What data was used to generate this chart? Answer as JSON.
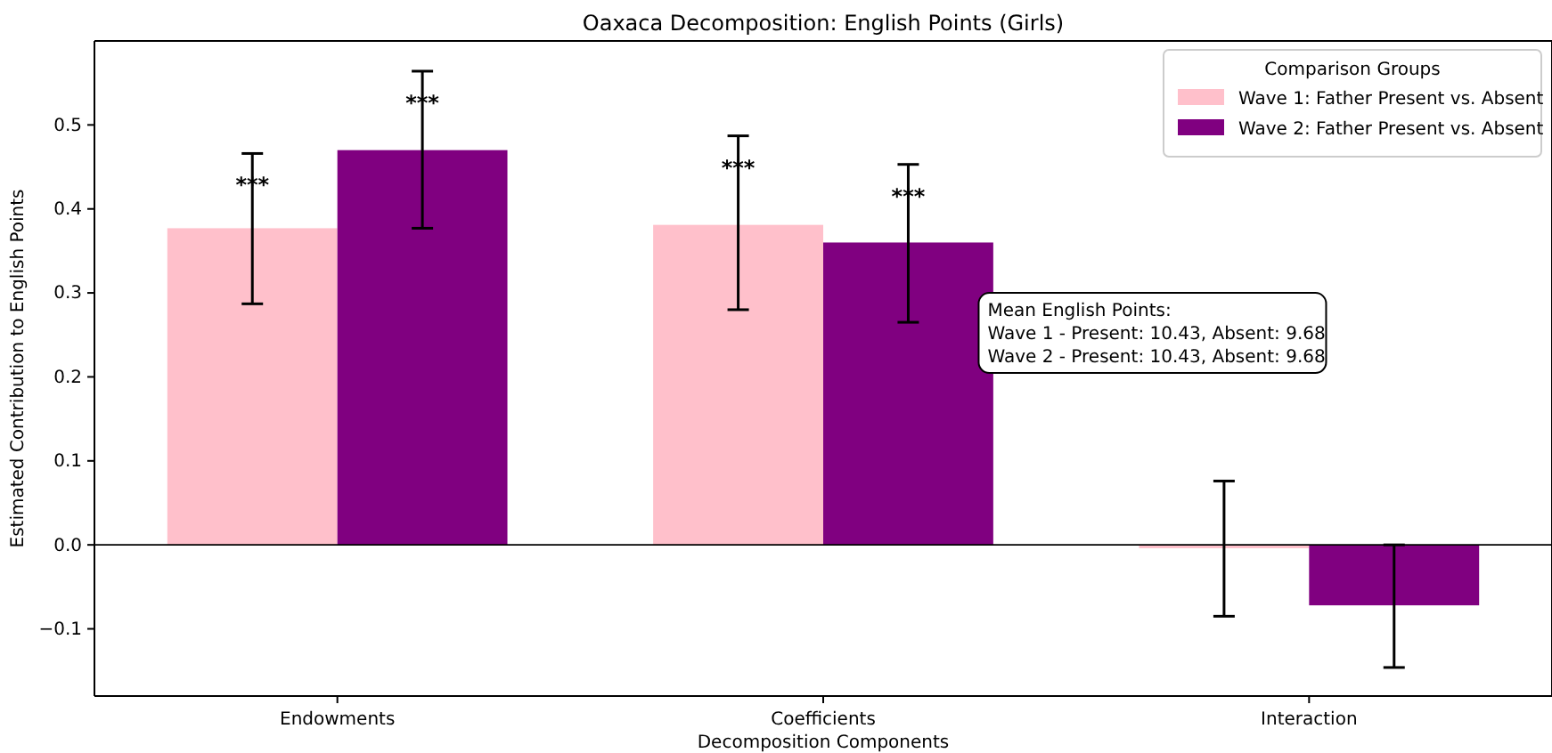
{
  "chart_data": {
    "type": "bar",
    "title": "Oaxaca Decomposition: English Points (Girls)",
    "xlabel": "Decomposition Components",
    "ylabel": "Estimated Contribution to English Points",
    "legend_title": "Comparison Groups",
    "categories": [
      "Endowments",
      "Coefficients",
      "Interaction"
    ],
    "series": [
      {
        "name": "Wave 1: Father Present vs. Absent",
        "color": "#ffc0cb",
        "values": [
          0.377,
          0.381,
          -0.004
        ],
        "errors": [
          [
            0.287,
            0.466
          ],
          [
            0.28,
            0.487
          ],
          [
            -0.085,
            0.076
          ]
        ]
      },
      {
        "name": "Wave 2: Father Present vs. Absent",
        "color": "#800080",
        "values": [
          0.47,
          0.36,
          -0.072
        ],
        "errors": [
          [
            0.377,
            0.564
          ],
          [
            0.265,
            0.453
          ],
          [
            -0.146,
            0.0
          ]
        ]
      }
    ],
    "ylim": [
      -0.18,
      0.6
    ],
    "yticks": [
      {
        "value": -0.1,
        "label": "−0.1"
      },
      {
        "value": 0,
        "label": "0.0"
      },
      0.1,
      0.2,
      0.3,
      0.4,
      0.5
    ],
    "ref_lines": [
      {
        "axis": "y",
        "value": 0,
        "color": "#000000"
      }
    ],
    "annotations": [
      "***",
      "***",
      "***",
      "***",
      "Mean English Points:\nWave 1 - Present: 10.43, Absent: 9.68\nWave 2 - Present: 10.43, Absent: 9.68"
    ],
    "legend": "top right",
    "grid": false
  }
}
